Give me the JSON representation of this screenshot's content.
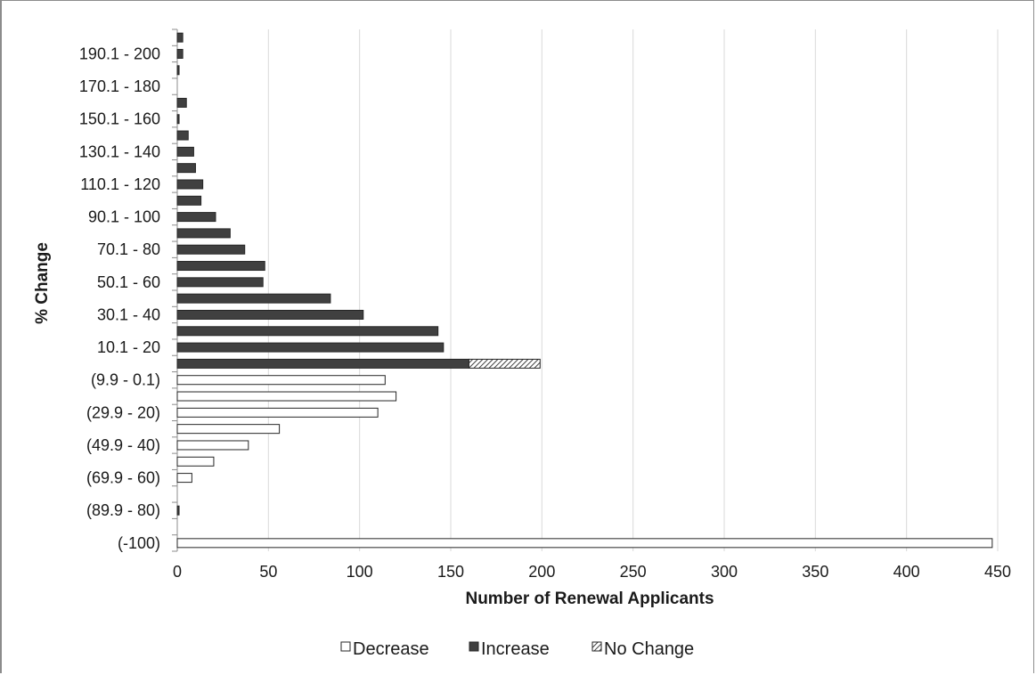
{
  "chart_data": {
    "type": "bar",
    "orientation": "horizontal",
    "stacked": true,
    "xlabel": "Number of Renewal Applicants",
    "ylabel": "% Change",
    "xlim": [
      0,
      450
    ],
    "x_ticks": [
      "0",
      "50",
      "100",
      "150",
      "200",
      "250",
      "300",
      "350",
      "400",
      "450"
    ],
    "grid": "vertical",
    "legend_position": "bottom",
    "categories": [
      "(-100)",
      "",
      "(89.9 - 80)",
      "",
      "(69.9 - 60)",
      "",
      "(49.9 - 40)",
      "",
      "(29.9 - 20)",
      "",
      "(9.9 - 0.1)",
      "",
      "10.1 - 20",
      "",
      "30.1 - 40",
      "",
      "50.1 - 60",
      "",
      "70.1 - 80",
      "",
      "90.1 - 100",
      "",
      "110.1 - 120",
      "",
      "130.1 - 140",
      "",
      "150.1 - 160",
      "",
      "170.1 - 180",
      "",
      "190.1 - 200",
      ""
    ],
    "series": [
      {
        "name": "Decrease",
        "color": "#ffffff",
        "values": [
          447,
          0,
          0,
          0,
          8,
          20,
          39,
          56,
          110,
          120,
          114,
          0,
          0,
          0,
          0,
          0,
          0,
          0,
          0,
          0,
          0,
          0,
          0,
          0,
          0,
          0,
          0,
          0,
          0,
          0,
          0,
          0
        ]
      },
      {
        "name": "Increase",
        "color": "#404040",
        "values": [
          0,
          0,
          1,
          0,
          0,
          0,
          0,
          0,
          0,
          0,
          0,
          160,
          146,
          143,
          102,
          84,
          47,
          48,
          37,
          29,
          21,
          13,
          14,
          10,
          9,
          6,
          1,
          5,
          0,
          1,
          3,
          3
        ]
      },
      {
        "name": "No Change",
        "color": "hatched",
        "values": [
          0,
          0,
          0,
          0,
          0,
          0,
          0,
          0,
          0,
          0,
          0,
          39,
          0,
          0,
          0,
          0,
          0,
          0,
          0,
          0,
          0,
          0,
          0,
          0,
          0,
          0,
          0,
          0,
          0,
          0,
          0,
          0
        ]
      }
    ]
  }
}
